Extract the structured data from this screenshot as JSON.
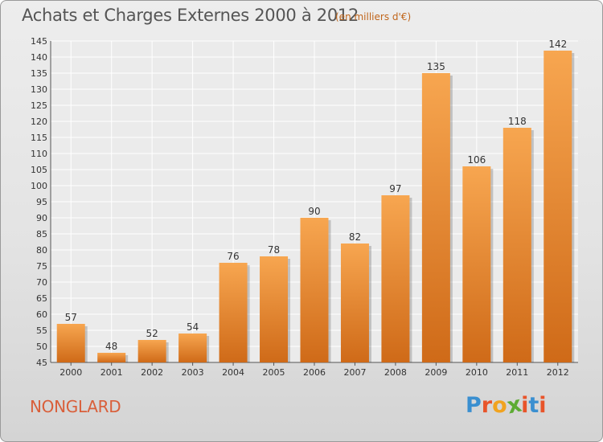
{
  "chart_data": {
    "type": "bar",
    "title": "Achats et Charges Externes 2000 à 2012",
    "subtitle": "(en milliers d'€)",
    "categories": [
      "2000",
      "2001",
      "2002",
      "2003",
      "2004",
      "2005",
      "2006",
      "2007",
      "2008",
      "2009",
      "2010",
      "2011",
      "2012"
    ],
    "values": [
      57,
      48,
      52,
      54,
      76,
      78,
      90,
      82,
      97,
      135,
      106,
      118,
      142
    ],
    "ylim": [
      45,
      145
    ],
    "yticks": [
      45,
      50,
      55,
      60,
      65,
      70,
      75,
      80,
      85,
      90,
      95,
      100,
      105,
      110,
      115,
      120,
      125,
      130,
      135,
      140,
      145
    ],
    "grid": true,
    "bar_color": "#f0943a"
  },
  "commune": "NONGLARD",
  "logo": {
    "text": "Proxiti",
    "colors": [
      "#3a8fd0",
      "#e8542a",
      "#f1a31f",
      "#5dab33",
      "#e8542a",
      "#3a8fd0",
      "#e8542a"
    ]
  }
}
